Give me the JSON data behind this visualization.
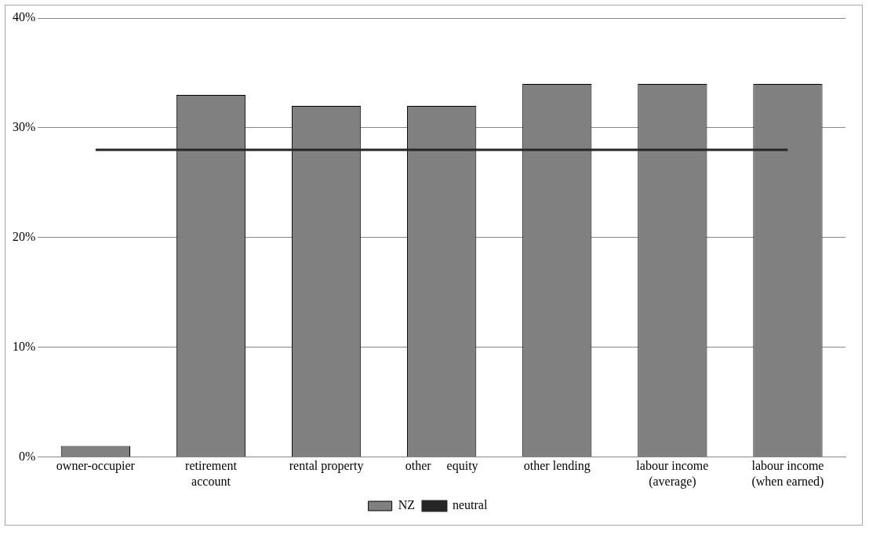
{
  "chart_data": {
    "type": "bar",
    "categories": [
      "owner-occupier",
      "retirement\naccount",
      "rental property",
      "other     equity",
      "other lending",
      "labour income\n(average)",
      "labour income\n(when earned)"
    ],
    "series": [
      {
        "name": "NZ",
        "color": "#808080",
        "values": [
          1,
          33,
          32,
          32,
          34,
          34,
          34
        ]
      },
      {
        "name": "neutral",
        "type": "line",
        "color": "#262626",
        "values": [
          28,
          28,
          28,
          28,
          28,
          28,
          28
        ]
      }
    ],
    "ylim": [
      0,
      40
    ],
    "yticks": [
      {
        "value": 0,
        "label": "0%"
      },
      {
        "value": 10,
        "label": "10%"
      },
      {
        "value": 20,
        "label": "20%"
      },
      {
        "value": 30,
        "label": "30%"
      },
      {
        "value": 40,
        "label": "40%"
      }
    ],
    "grid": "y",
    "legend": "bottom",
    "marker": "none",
    "line_style": "solid"
  }
}
